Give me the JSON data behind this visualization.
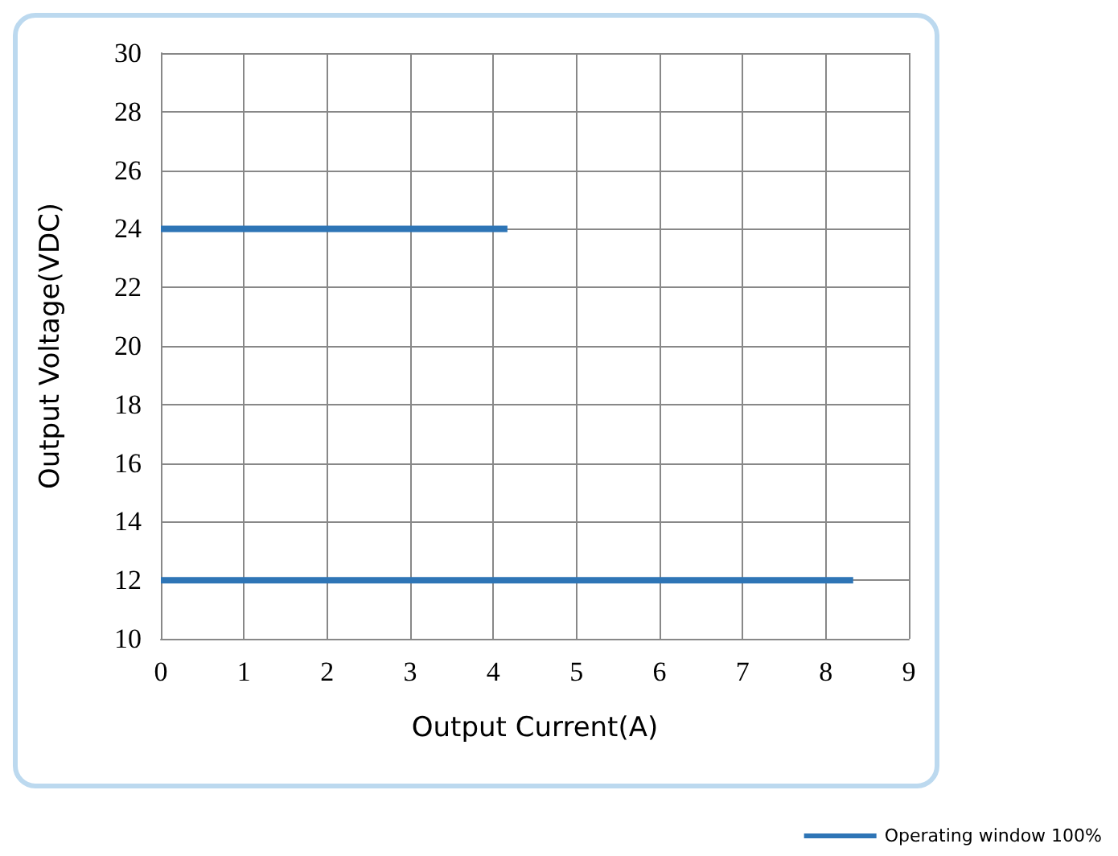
{
  "chart_data": {
    "type": "line",
    "xlabel": "Output Current(A)",
    "ylabel": "Output Voltage(VDC)",
    "series": [
      {
        "name": "Operating window 100%",
        "color": "#2e75b6",
        "x": [
          0,
          4.17
        ],
        "values": [
          24,
          24
        ]
      },
      {
        "color": "#2e75b6",
        "x": [
          0,
          8.33
        ],
        "values": [
          12,
          12
        ]
      }
    ],
    "xlim": [
      0,
      9
    ],
    "xticks": [
      0,
      1,
      2,
      3,
      4,
      5,
      6,
      7,
      8,
      9
    ],
    "ylim": [
      10,
      30
    ],
    "yticks": [
      10,
      12,
      14,
      16,
      18,
      20,
      22,
      24,
      26,
      28,
      30
    ],
    "grid": true,
    "legend": "bottom right",
    "marker": "none",
    "line_style": "solid"
  }
}
